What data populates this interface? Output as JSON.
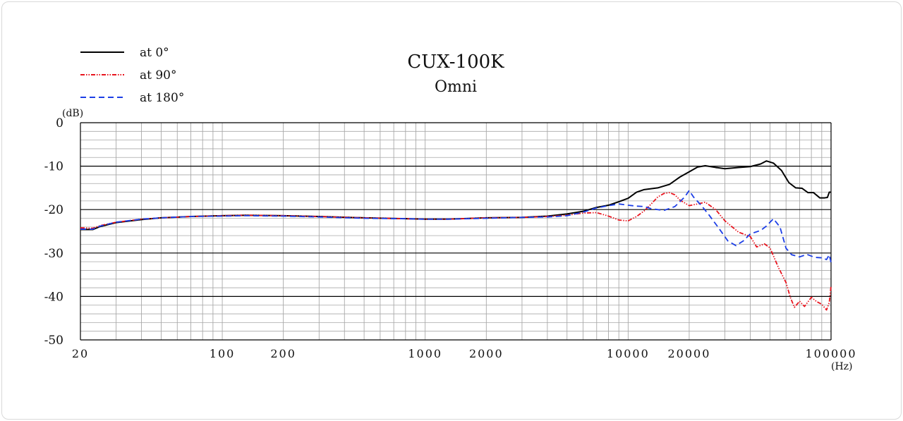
{
  "chart_data": {
    "type": "line",
    "title": "CUX-100K",
    "subtitle": "Omni",
    "xlabel": "(Hz)",
    "ylabel": "(dB)",
    "x_scale": "log",
    "xlim": [
      20,
      100000
    ],
    "ylim": [
      -50,
      0
    ],
    "x_ticks": [
      {
        "value": 20,
        "label": "20"
      },
      {
        "value": 100,
        "label": "100"
      },
      {
        "value": 200,
        "label": "200"
      },
      {
        "value": 1000,
        "label": "1000"
      },
      {
        "value": 2000,
        "label": "2000"
      },
      {
        "value": 10000,
        "label": "10000"
      },
      {
        "value": 20000,
        "label": "20000"
      },
      {
        "value": 100000,
        "label": "100000"
      }
    ],
    "y_ticks": [
      {
        "value": 0,
        "label": "0"
      },
      {
        "value": -10,
        "label": "-10"
      },
      {
        "value": -20,
        "label": "-20"
      },
      {
        "value": -30,
        "label": "-30"
      },
      {
        "value": -40,
        "label": "-40"
      },
      {
        "value": -50,
        "label": "-50"
      }
    ],
    "grid": true,
    "legend_position": "top-left",
    "series": [
      {
        "name": "at 0°",
        "color": "#000000",
        "dash": "solid",
        "points": [
          [
            20,
            -24.6
          ],
          [
            23,
            -24.6
          ],
          [
            25,
            -23.9
          ],
          [
            30,
            -23
          ],
          [
            40,
            -22.3
          ],
          [
            50,
            -21.9
          ],
          [
            70,
            -21.6
          ],
          [
            100,
            -21.4
          ],
          [
            130,
            -21.3
          ],
          [
            200,
            -21.4
          ],
          [
            300,
            -21.6
          ],
          [
            500,
            -21.9
          ],
          [
            800,
            -22.1
          ],
          [
            1000,
            -22.2
          ],
          [
            1300,
            -22.2
          ],
          [
            2000,
            -21.9
          ],
          [
            3000,
            -21.8
          ],
          [
            4000,
            -21.5
          ],
          [
            5000,
            -21
          ],
          [
            6000,
            -20.4
          ],
          [
            7000,
            -19.5
          ],
          [
            8000,
            -19
          ],
          [
            9000,
            -18.2
          ],
          [
            10000,
            -17.4
          ],
          [
            11000,
            -16
          ],
          [
            12000,
            -15.4
          ],
          [
            14000,
            -15
          ],
          [
            16000,
            -14.2
          ],
          [
            18000,
            -12.5
          ],
          [
            20000,
            -11.3
          ],
          [
            22000,
            -10.2
          ],
          [
            24000,
            -9.9
          ],
          [
            27000,
            -10.3
          ],
          [
            30000,
            -10.6
          ],
          [
            35000,
            -10.3
          ],
          [
            40000,
            -10.1
          ],
          [
            45000,
            -9.5
          ],
          [
            48000,
            -8.8
          ],
          [
            52000,
            -9.3
          ],
          [
            57000,
            -11
          ],
          [
            62000,
            -13.8
          ],
          [
            67000,
            -15
          ],
          [
            72000,
            -15.1
          ],
          [
            77000,
            -16.1
          ],
          [
            82000,
            -16.1
          ],
          [
            88000,
            -17.3
          ],
          [
            93000,
            -17.3
          ],
          [
            96000,
            -17.2
          ],
          [
            98000,
            -16
          ],
          [
            100000,
            -16
          ]
        ]
      },
      {
        "name": "at 90°",
        "color": "#e8141e",
        "dash": "dashdot",
        "points": [
          [
            20,
            -24.2
          ],
          [
            23,
            -24.3
          ],
          [
            25,
            -23.7
          ],
          [
            30,
            -22.9
          ],
          [
            40,
            -22.2
          ],
          [
            50,
            -21.9
          ],
          [
            70,
            -21.6
          ],
          [
            100,
            -21.4
          ],
          [
            130,
            -21.3
          ],
          [
            200,
            -21.4
          ],
          [
            300,
            -21.6
          ],
          [
            500,
            -21.9
          ],
          [
            800,
            -22.1
          ],
          [
            1000,
            -22.2
          ],
          [
            1300,
            -22.2
          ],
          [
            2000,
            -21.9
          ],
          [
            3000,
            -21.8
          ],
          [
            4000,
            -21.6
          ],
          [
            5000,
            -21.3
          ],
          [
            6000,
            -20.8
          ],
          [
            7000,
            -20.7
          ],
          [
            8000,
            -21.5
          ],
          [
            9000,
            -22.4
          ],
          [
            10000,
            -22.6
          ],
          [
            11000,
            -21.6
          ],
          [
            12000,
            -20.3
          ],
          [
            13000,
            -18.7
          ],
          [
            14000,
            -17.1
          ],
          [
            15000,
            -16.3
          ],
          [
            16000,
            -16.1
          ],
          [
            17000,
            -16.6
          ],
          [
            18000,
            -17.8
          ],
          [
            20000,
            -19.1
          ],
          [
            22000,
            -18.7
          ],
          [
            24000,
            -18.3
          ],
          [
            27000,
            -20
          ],
          [
            30000,
            -22.6
          ],
          [
            35000,
            -25.2
          ],
          [
            40000,
            -26.2
          ],
          [
            43000,
            -28.6
          ],
          [
            47000,
            -27.9
          ],
          [
            50000,
            -28.8
          ],
          [
            55000,
            -33.3
          ],
          [
            60000,
            -36.8
          ],
          [
            63000,
            -40.2
          ],
          [
            66000,
            -42.5
          ],
          [
            70000,
            -41.1
          ],
          [
            74000,
            -42.3
          ],
          [
            80000,
            -40.2
          ],
          [
            85000,
            -41.2
          ],
          [
            90000,
            -41.8
          ],
          [
            95000,
            -43.1
          ],
          [
            98000,
            -41.4
          ],
          [
            100000,
            -37.6
          ]
        ]
      },
      {
        "name": "at 180°",
        "color": "#1c3ee6",
        "dash": "dashed",
        "points": [
          [
            20,
            -24.5
          ],
          [
            23,
            -24.5
          ],
          [
            25,
            -23.8
          ],
          [
            30,
            -22.9
          ],
          [
            40,
            -22.2
          ],
          [
            50,
            -21.9
          ],
          [
            70,
            -21.6
          ],
          [
            100,
            -21.5
          ],
          [
            130,
            -21.4
          ],
          [
            200,
            -21.5
          ],
          [
            300,
            -21.7
          ],
          [
            500,
            -22
          ],
          [
            800,
            -22.1
          ],
          [
            1000,
            -22.2
          ],
          [
            1300,
            -22.2
          ],
          [
            2000,
            -22
          ],
          [
            3000,
            -21.8
          ],
          [
            4000,
            -21.7
          ],
          [
            5000,
            -21.4
          ],
          [
            6000,
            -20.6
          ],
          [
            7000,
            -19.6
          ],
          [
            8000,
            -19.1
          ],
          [
            9000,
            -18.7
          ],
          [
            10000,
            -19
          ],
          [
            11000,
            -19.2
          ],
          [
            12000,
            -19.3
          ],
          [
            13000,
            -19.8
          ],
          [
            15000,
            -20.2
          ],
          [
            17000,
            -19.3
          ],
          [
            19000,
            -17.1
          ],
          [
            20000,
            -15.6
          ],
          [
            21000,
            -17.1
          ],
          [
            23000,
            -19.1
          ],
          [
            25000,
            -21.2
          ],
          [
            28000,
            -24.3
          ],
          [
            31000,
            -27.2
          ],
          [
            34000,
            -28.3
          ],
          [
            37000,
            -27.2
          ],
          [
            40000,
            -25.6
          ],
          [
            45000,
            -24.8
          ],
          [
            48000,
            -23.8
          ],
          [
            52000,
            -22.1
          ],
          [
            56000,
            -24
          ],
          [
            60000,
            -28.9
          ],
          [
            64000,
            -30.4
          ],
          [
            70000,
            -30.9
          ],
          [
            76000,
            -30.3
          ],
          [
            83000,
            -31
          ],
          [
            90000,
            -31.1
          ],
          [
            95000,
            -31.5
          ],
          [
            98000,
            -30.4
          ],
          [
            100000,
            -32.2
          ]
        ]
      }
    ]
  }
}
